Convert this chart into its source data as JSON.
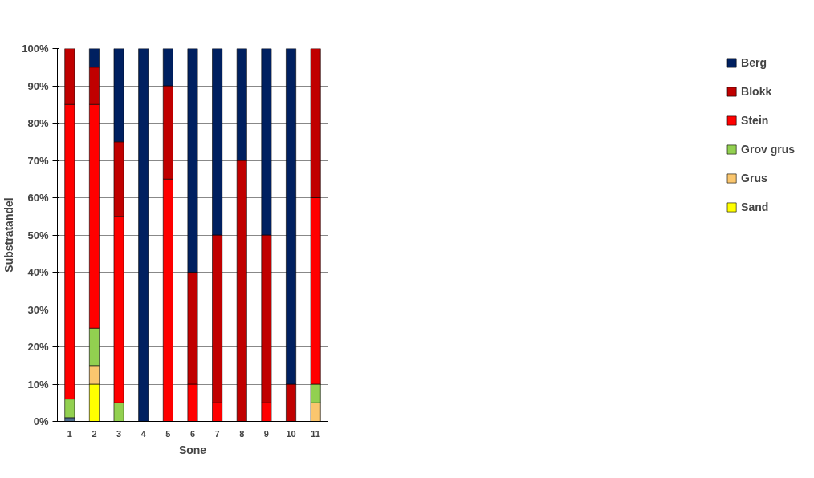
{
  "chart_data": {
    "type": "bar",
    "stacked": true,
    "xlabel": "Sone",
    "ylabel": "Substratandel",
    "categories": [
      "1",
      "2",
      "3",
      "4",
      "5",
      "6",
      "7",
      "8",
      "9",
      "10",
      "11"
    ],
    "series": [
      {
        "color": "#4f6e8f",
        "values": [
          1,
          0,
          0,
          0,
          0,
          0,
          0,
          0,
          0,
          0,
          0
        ]
      },
      {
        "name": "Sand",
        "color": "#ffff00",
        "values": [
          0,
          10,
          0,
          0,
          0,
          0,
          0,
          0,
          0,
          0,
          0
        ]
      },
      {
        "name": "Grus",
        "color": "#fac66e",
        "values": [
          0,
          5,
          0,
          0,
          0,
          0,
          0,
          0,
          0,
          0,
          5
        ]
      },
      {
        "name": "Grov grus",
        "color": "#92d050",
        "values": [
          5,
          10,
          5,
          0,
          0,
          0,
          0,
          0,
          0,
          0,
          5
        ]
      },
      {
        "name": "Stein",
        "color": "#ff0000",
        "values": [
          79,
          60,
          50,
          0,
          65,
          10,
          5,
          0,
          5,
          0,
          50
        ]
      },
      {
        "name": "Blokk",
        "color": "#c00000",
        "values": [
          15,
          10,
          20,
          0,
          25,
          30,
          45,
          70,
          45,
          10,
          40
        ]
      },
      {
        "name": "Berg",
        "color": "#002060",
        "values": [
          0,
          5,
          25,
          100,
          10,
          60,
          50,
          30,
          50,
          90,
          0
        ]
      }
    ],
    "ylim": [
      0,
      100
    ],
    "yticks": [
      {
        "value": 0,
        "label": "0%"
      },
      {
        "value": 10,
        "label": "10%"
      },
      {
        "value": 20,
        "label": "20%"
      },
      {
        "value": 30,
        "label": "30%"
      },
      {
        "value": 40,
        "label": "40%"
      },
      {
        "value": 50,
        "label": "50%"
      },
      {
        "value": 60,
        "label": "60%"
      },
      {
        "value": 70,
        "label": "70%"
      },
      {
        "value": 80,
        "label": "80%"
      },
      {
        "value": 90,
        "label": "90%"
      },
      {
        "value": 100,
        "label": "100%"
      }
    ],
    "grid": "y",
    "legend": "right"
  }
}
